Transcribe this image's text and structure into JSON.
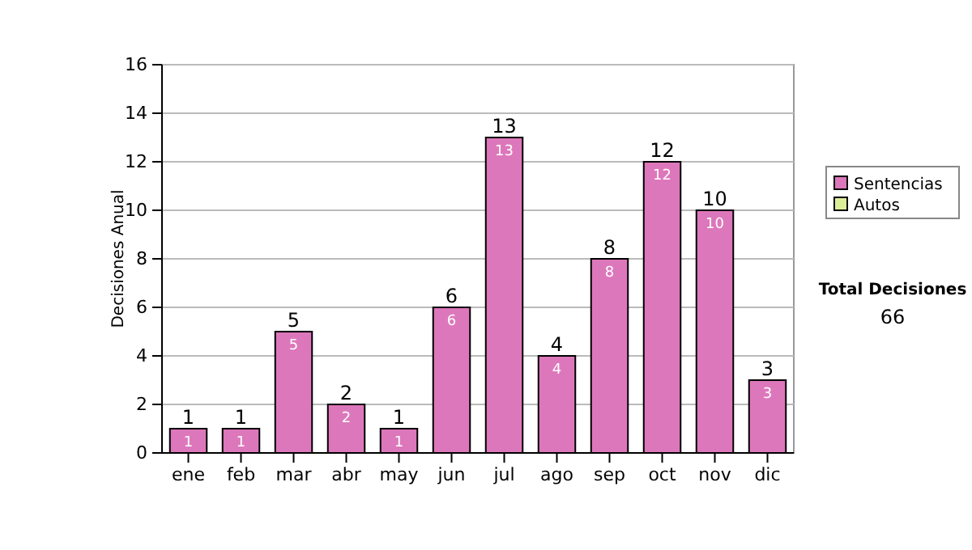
{
  "chart_data": {
    "type": "bar",
    "ylabel": "Decisiones Anual",
    "categories": [
      "ene",
      "feb",
      "mar",
      "abr",
      "may",
      "jun",
      "jul",
      "ago",
      "sep",
      "oct",
      "nov",
      "dic"
    ],
    "series": [
      {
        "name": "Sentencias",
        "color": "#dd77bb",
        "values": [
          1,
          1,
          5,
          2,
          1,
          6,
          13,
          4,
          8,
          12,
          10,
          3
        ],
        "value_labels": [
          "1",
          "1",
          "5",
          "2",
          "1",
          "6",
          "13",
          "4",
          "8",
          "12",
          "10",
          "3"
        ]
      },
      {
        "name": "Autos",
        "color": "#ddee99",
        "values": [
          0,
          0,
          0,
          0,
          0,
          0,
          0,
          0,
          0,
          0,
          0,
          0
        ]
      }
    ],
    "stacked": true,
    "totals": [
      "1",
      "1",
      "5",
      "2",
      "1",
      "6",
      "13",
      "4",
      "8",
      "12",
      "10",
      "3"
    ],
    "ylim": [
      0,
      16
    ],
    "yticks": [
      0,
      2,
      4,
      6,
      8,
      10,
      12,
      14,
      16
    ],
    "grid": "y",
    "legend": "right",
    "annotations": [
      "Total Decisiones",
      "66"
    ]
  }
}
